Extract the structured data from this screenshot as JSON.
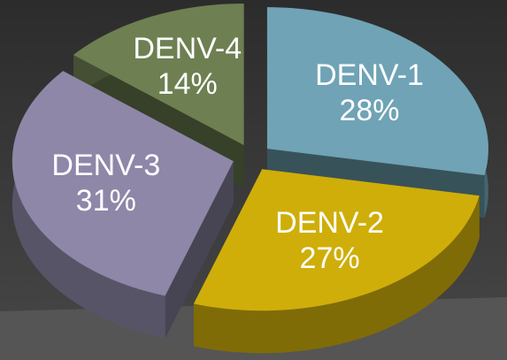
{
  "chart_data": {
    "type": "pie3d",
    "categories": [
      "DENV-1",
      "DENV-2",
      "DENV-3",
      "DENV-4"
    ],
    "values": [
      28,
      27,
      31,
      14
    ],
    "value_labels": [
      "28%",
      "27%",
      "31%",
      "14%"
    ],
    "colors": [
      "#6fa3b5",
      "#cfae0a",
      "#8e87a8",
      "#6e7f52"
    ]
  }
}
